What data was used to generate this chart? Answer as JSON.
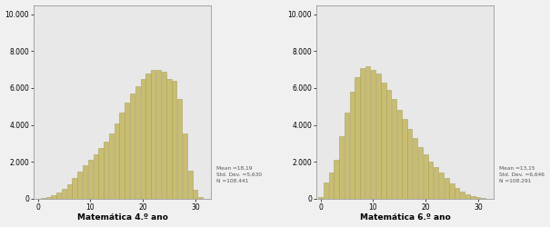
{
  "chart1": {
    "title": "Matemática 4.º ano",
    "mean": 18.19,
    "std": 5.63,
    "n": 108441,
    "xlim": [
      -0.8,
      33
    ],
    "ylim": [
      0,
      10500
    ],
    "yticks": [
      0,
      2000,
      4000,
      6000,
      8000,
      10000
    ],
    "xticks": [
      0,
      10,
      20,
      30
    ],
    "stats_text": "Mean =18,19\nStd. Dev. =5,630\nN =108.441",
    "counts": [
      5,
      30,
      80,
      180,
      350,
      550,
      800,
      1100,
      1450,
      1800,
      2100,
      2400,
      2750,
      3100,
      3550,
      4100,
      4650,
      5200,
      5700,
      6100,
      6500,
      6800,
      7000,
      7000,
      6900,
      6500,
      6400,
      5400,
      3550,
      1500,
      500,
      100
    ]
  },
  "chart2": {
    "title": "Matemática 6.º ano",
    "mean": 13.15,
    "std": 6.646,
    "n": 108291,
    "xlim": [
      -0.8,
      33
    ],
    "ylim": [
      0,
      10500
    ],
    "yticks": [
      0,
      2000,
      4000,
      6000,
      8000,
      10000
    ],
    "xticks": [
      0,
      10,
      20,
      30
    ],
    "stats_text": "Mean =13,15\nStd. Dev. =6,646\nN =108.291",
    "counts": [
      80,
      900,
      1400,
      2100,
      3400,
      4650,
      5800,
      6600,
      7100,
      7200,
      7000,
      6800,
      6300,
      5900,
      5400,
      4800,
      4300,
      3800,
      3300,
      2800,
      2400,
      2000,
      1700,
      1400,
      1100,
      850,
      600,
      400,
      250,
      150,
      80,
      30
    ]
  },
  "bar_color": "#c9bd72",
  "bar_edge_color": "#a8a05a",
  "bg_color": "#e8e8e8",
  "fig_bg": "#f0f0f0",
  "bar_width": 0.9,
  "num_bins": 32
}
